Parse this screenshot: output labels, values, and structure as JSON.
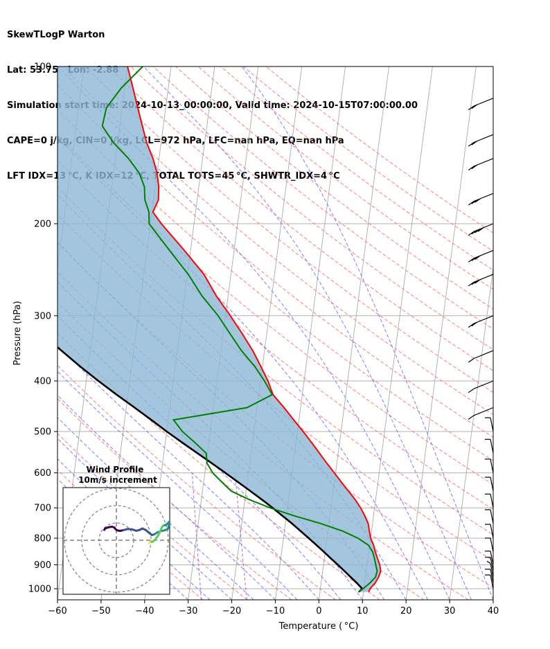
{
  "header": {
    "line1": "SkewTLogP Warton",
    "line2": "Lat: 53.75   Lon: -2.88",
    "line3": "Simulation start time: 2024-10-13_00:00:00, Valid time: 2024-10-15T07:00:00.00",
    "line4": "CAPE=0 j/kg, CIN=0 j/kg, LCL=972 hPa, LFC=nan hPa, EQ=nan hPa",
    "line5": "LFT IDX=13 °C, K IDX=12 °C, TOTAL TOTS=45 °C, SHWTR_IDX=4 °C"
  },
  "colors": {
    "temperature": "#ff0000",
    "dewpoint": "#008000",
    "parcel": "#000000",
    "shade": "#8cb6d6",
    "dry_adiabat": "#ff6666",
    "moist_adiabat": "#6666ff",
    "mixing_ratio": "#9944cc",
    "isotherm": "#aaaaaa"
  },
  "chart_data": [
    {
      "type": "line",
      "title": "",
      "xlabel": "Temperature ( °C)",
      "ylabel": "Pressure (hPa)",
      "xlim": [
        -60,
        40
      ],
      "ylim": [
        1050,
        100
      ],
      "y_scale": "log",
      "skew": "temperature lines slanted ~45 degrees",
      "x_ticks": [
        -60,
        -50,
        -40,
        -30,
        -20,
        -10,
        0,
        10,
        20,
        30,
        40
      ],
      "x_tick_labels": [
        "−60",
        "−50",
        "−40",
        "−30",
        "−20",
        "−10",
        "0",
        "10",
        "20",
        "30",
        "40"
      ],
      "y_ticks": [
        1000,
        900,
        800,
        700,
        600,
        500,
        400,
        300,
        200,
        100
      ],
      "y_tick_labels": [
        "1000",
        "900",
        "800",
        "700",
        "600",
        "500",
        "400",
        "300",
        "200",
        "100"
      ],
      "grid": true,
      "series": [
        {
          "key": "temperature",
          "points": [
            [
              1014,
              11.2
            ],
            [
              1000,
              11.4
            ],
            [
              975,
              12.4
            ],
            [
              950,
              13.0
            ],
            [
              925,
              13.3
            ],
            [
              900,
              12.9
            ],
            [
              875,
              12.2
            ],
            [
              850,
              11.5
            ],
            [
              825,
              10.9
            ],
            [
              800,
              10.0
            ],
            [
              775,
              9.5
            ],
            [
              750,
              9.0
            ],
            [
              725,
              8.0
            ],
            [
              700,
              6.8
            ],
            [
              675,
              5.3
            ],
            [
              650,
              3.5
            ],
            [
              625,
              1.6
            ],
            [
              600,
              -0.3
            ],
            [
              575,
              -2.3
            ],
            [
              550,
              -4.3
            ],
            [
              525,
              -6.4
            ],
            [
              500,
              -8.7
            ],
            [
              475,
              -11.2
            ],
            [
              450,
              -13.8
            ],
            [
              425,
              -16.7
            ],
            [
              400,
              -18.3
            ],
            [
              375,
              -20.4
            ],
            [
              350,
              -22.7
            ],
            [
              325,
              -25.6
            ],
            [
              300,
              -28.9
            ],
            [
              275,
              -32.7
            ],
            [
              250,
              -36.2
            ],
            [
              225,
              -41.4
            ],
            [
              200,
              -47.5
            ],
            [
              190,
              -49.8
            ],
            [
              180,
              -48.9
            ],
            [
              170,
              -49.2
            ],
            [
              160,
              -50.0
            ],
            [
              150,
              -51.4
            ],
            [
              140,
              -53.3
            ],
            [
              130,
              -54.8
            ],
            [
              120,
              -56.4
            ],
            [
              110,
              -58.1
            ],
            [
              100,
              -60.0
            ]
          ]
        },
        {
          "key": "dewpoint",
          "points": [
            [
              1014,
              8.8
            ],
            [
              1000,
              9.8
            ],
            [
              975,
              11.2
            ],
            [
              950,
              12.3
            ],
            [
              925,
              12.5
            ],
            [
              900,
              12.0
            ],
            [
              875,
              11.5
            ],
            [
              850,
              10.9
            ],
            [
              825,
              9.7
            ],
            [
              800,
              7.1
            ],
            [
              775,
              3.3
            ],
            [
              750,
              -1.9
            ],
            [
              725,
              -8.2
            ],
            [
              700,
              -14.0
            ],
            [
              675,
              -19.0
            ],
            [
              650,
              -23.4
            ],
            [
              625,
              -25.8
            ],
            [
              600,
              -28.2
            ],
            [
              575,
              -29.8
            ],
            [
              550,
              -30.3
            ],
            [
              525,
              -33.2
            ],
            [
              500,
              -36.4
            ],
            [
              475,
              -38.8
            ],
            [
              450,
              -22.3
            ],
            [
              425,
              -16.9
            ],
            [
              400,
              -19.1
            ],
            [
              375,
              -21.8
            ],
            [
              350,
              -25.3
            ],
            [
              325,
              -28.4
            ],
            [
              300,
              -31.7
            ],
            [
              275,
              -36.0
            ],
            [
              250,
              -39.8
            ],
            [
              225,
              -44.8
            ],
            [
              200,
              -50.3
            ],
            [
              190,
              -50.7
            ],
            [
              180,
              -52.0
            ],
            [
              170,
              -52.5
            ],
            [
              160,
              -54.1
            ],
            [
              150,
              -57.0
            ],
            [
              140,
              -60.9
            ],
            [
              130,
              -64.0
            ],
            [
              120,
              -63.6
            ],
            [
              110,
              -60.8
            ],
            [
              100,
              -56.5
            ]
          ]
        },
        {
          "key": "parcel",
          "points": [
            [
              1014,
              8.9
            ],
            [
              1000,
              9.6
            ],
            [
              975,
              8.2
            ],
            [
              950,
              6.6
            ],
            [
              925,
              5.0
            ],
            [
              900,
              3.3
            ],
            [
              875,
              1.5
            ],
            [
              850,
              -0.3
            ],
            [
              825,
              -2.2
            ],
            [
              800,
              -4.2
            ],
            [
              775,
              -6.3
            ],
            [
              750,
              -8.5
            ],
            [
              725,
              -10.9
            ],
            [
              700,
              -13.4
            ],
            [
              675,
              -16.1
            ],
            [
              650,
              -19.0
            ],
            [
              625,
              -22.1
            ],
            [
              600,
              -25.3
            ],
            [
              575,
              -28.7
            ],
            [
              550,
              -32.3
            ],
            [
              525,
              -36.1
            ],
            [
              500,
              -40.0
            ],
            [
              475,
              -43.9
            ],
            [
              450,
              -48.1
            ],
            [
              425,
              -52.6
            ],
            [
              400,
              -57.2
            ],
            [
              375,
              -61.9
            ],
            [
              350,
              -66.6
            ],
            [
              325,
              -71.7
            ],
            [
              300,
              -76.9
            ],
            [
              275,
              -82.1
            ],
            [
              250,
              -87.6
            ],
            [
              225,
              -93.5
            ],
            [
              200,
              -99.8
            ],
            [
              175,
              -106.5
            ],
            [
              150,
              -114.0
            ],
            [
              125,
              -122.6
            ],
            [
              100,
              -132.5
            ]
          ]
        }
      ],
      "wind_barbs": [
        {
          "p": 1000,
          "speed_kt": 10
        },
        {
          "p": 975,
          "speed_kt": 10
        },
        {
          "p": 950,
          "speed_kt": 5
        },
        {
          "p": 925,
          "speed_kt": 10
        },
        {
          "p": 900,
          "speed_kt": 10
        },
        {
          "p": 850,
          "speed_kt": 10
        },
        {
          "p": 800,
          "speed_kt": 10
        },
        {
          "p": 750,
          "speed_kt": 10
        },
        {
          "p": 700,
          "speed_kt": 10
        },
        {
          "p": 650,
          "speed_kt": 10
        },
        {
          "p": 600,
          "speed_kt": 10
        },
        {
          "p": 550,
          "speed_kt": 10
        },
        {
          "p": 500,
          "speed_kt": 10
        },
        {
          "p": 450,
          "speed_kt": 10
        },
        {
          "p": 400,
          "speed_kt": 10
        },
        {
          "p": 350,
          "speed_kt": 10
        },
        {
          "p": 300,
          "speed_kt": 20
        },
        {
          "p": 250,
          "speed_kt": 30
        },
        {
          "p": 225,
          "speed_kt": 30
        },
        {
          "p": 200,
          "speed_kt": 40
        },
        {
          "p": 175,
          "speed_kt": 30
        },
        {
          "p": 150,
          "speed_kt": 20
        },
        {
          "p": 135,
          "speed_kt": 20
        },
        {
          "p": 115,
          "speed_kt": 20
        }
      ]
    },
    {
      "type": "line",
      "title": "Wind Profile",
      "subtitle": "10m/s increment",
      "rings_ms": [
        10,
        20,
        30
      ],
      "trace_uv": [
        [
          -7,
          6
        ],
        [
          -6.5,
          6.8
        ],
        [
          -5.5,
          7.2
        ],
        [
          -4,
          7.6
        ],
        [
          -2.5,
          7.8
        ],
        [
          -1.2,
          7.4
        ],
        [
          -0.8,
          6.8
        ],
        [
          0.2,
          5.8
        ],
        [
          2,
          5.4
        ],
        [
          4,
          5.8
        ],
        [
          6.5,
          6.5
        ],
        [
          9,
          6.3
        ],
        [
          11.5,
          5.5
        ],
        [
          13.5,
          6
        ],
        [
          15,
          6.8
        ],
        [
          17,
          5.9
        ],
        [
          19,
          4.2
        ],
        [
          20.5,
          3.0
        ],
        [
          22.3,
          3.6
        ],
        [
          23.5,
          4.5
        ],
        [
          25.5,
          5.2
        ],
        [
          28.0,
          5.8
        ],
        [
          29.8,
          6.6
        ],
        [
          30.3,
          8.8
        ],
        [
          30.6,
          10.8
        ],
        [
          29.5,
          9.6
        ],
        [
          28.4,
          8.8
        ],
        [
          27,
          8.4
        ],
        [
          26.1,
          7.2
        ],
        [
          25.1,
          4.8
        ],
        [
          24.1,
          2.7
        ],
        [
          22.7,
          0.9
        ],
        [
          22.6,
          0.2
        ],
        [
          21.7,
          -0.1
        ],
        [
          21.0,
          -0.8
        ],
        [
          19.4,
          -1.1
        ],
        [
          18.9,
          -1.7
        ]
      ]
    }
  ]
}
